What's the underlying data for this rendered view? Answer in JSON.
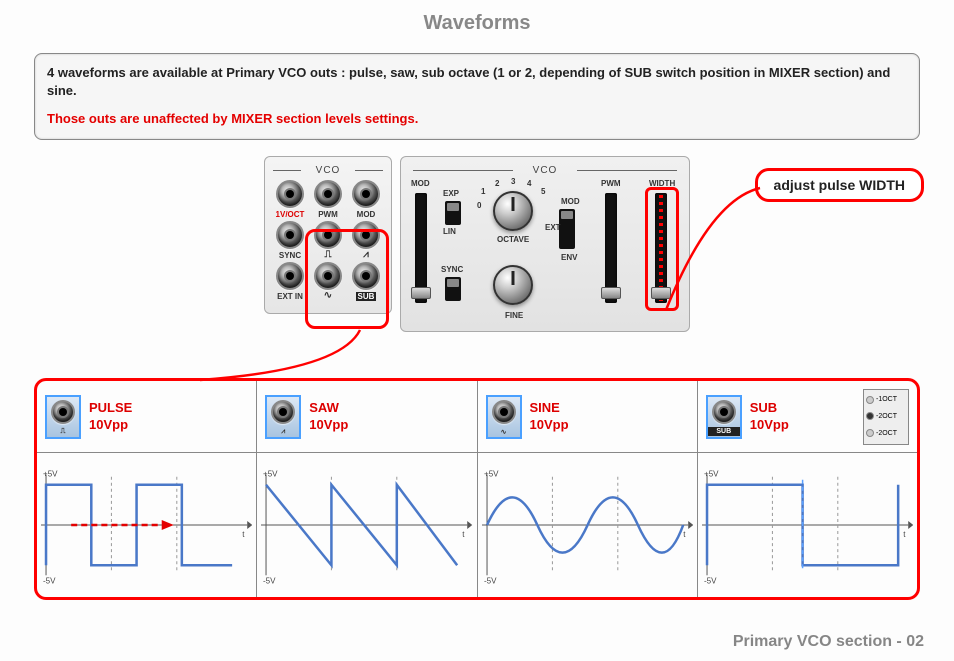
{
  "title": "Waveforms",
  "info": {
    "line1": "4 waveforms are available at Primary VCO outs : pulse, saw, sub octave (1 or 2, depending of SUB switch position in MIXER section) and sine.",
    "line2": "Those outs are unaffected by MIXER section levels settings."
  },
  "jack_panel": {
    "header": "VCO",
    "rows": [
      [
        {
          "label": "1V/OCT",
          "red": true
        },
        {
          "label": "PWM"
        },
        {
          "label": "MOD"
        }
      ],
      [
        {
          "label": "SYNC"
        },
        {
          "glyph": "⎍"
        },
        {
          "glyph": "⩘"
        }
      ],
      [
        {
          "label": "EXT IN"
        },
        {
          "glyph": "∿"
        },
        {
          "label": "SUB",
          "inv": true
        }
      ]
    ]
  },
  "ctrl_panel": {
    "header": "VCO",
    "labels": {
      "mod": "MOD",
      "exp": "EXP",
      "lin": "LIN",
      "sync": "SYNC",
      "octave": "OCTAVE",
      "fine": "FINE",
      "ext": "EXT",
      "env": "ENV",
      "mod2": "MOD",
      "pwm": "PWM",
      "width": "WIDTH",
      "oct_nums": [
        "0",
        "1",
        "2",
        "3",
        "4",
        "5"
      ]
    }
  },
  "callout": "adjust pulse WIDTH",
  "waves": [
    {
      "name": "PULSE",
      "vpp": "10Vpp",
      "glyph": "⎍",
      "type": "pulse"
    },
    {
      "name": "SAW",
      "vpp": "10Vpp",
      "glyph": "⩘",
      "type": "saw"
    },
    {
      "name": "SINE",
      "vpp": "10Vpp",
      "glyph": "∿",
      "type": "sine"
    },
    {
      "name": "SUB",
      "vpp": "10Vpp",
      "glyph": "SUB",
      "type": "sub"
    }
  ],
  "oct_options": [
    "-1OCT",
    "-2OCT",
    "-2OCT"
  ],
  "axis": {
    "top": "+5V",
    "bottom": "-5V",
    "right": "t"
  },
  "footer": "Primary VCO section - 02",
  "colors": {
    "wave": "#4a78c8",
    "axis": "#555",
    "dash": "#999",
    "accent": "#f00",
    "pulse_arrow": "#e40000"
  }
}
